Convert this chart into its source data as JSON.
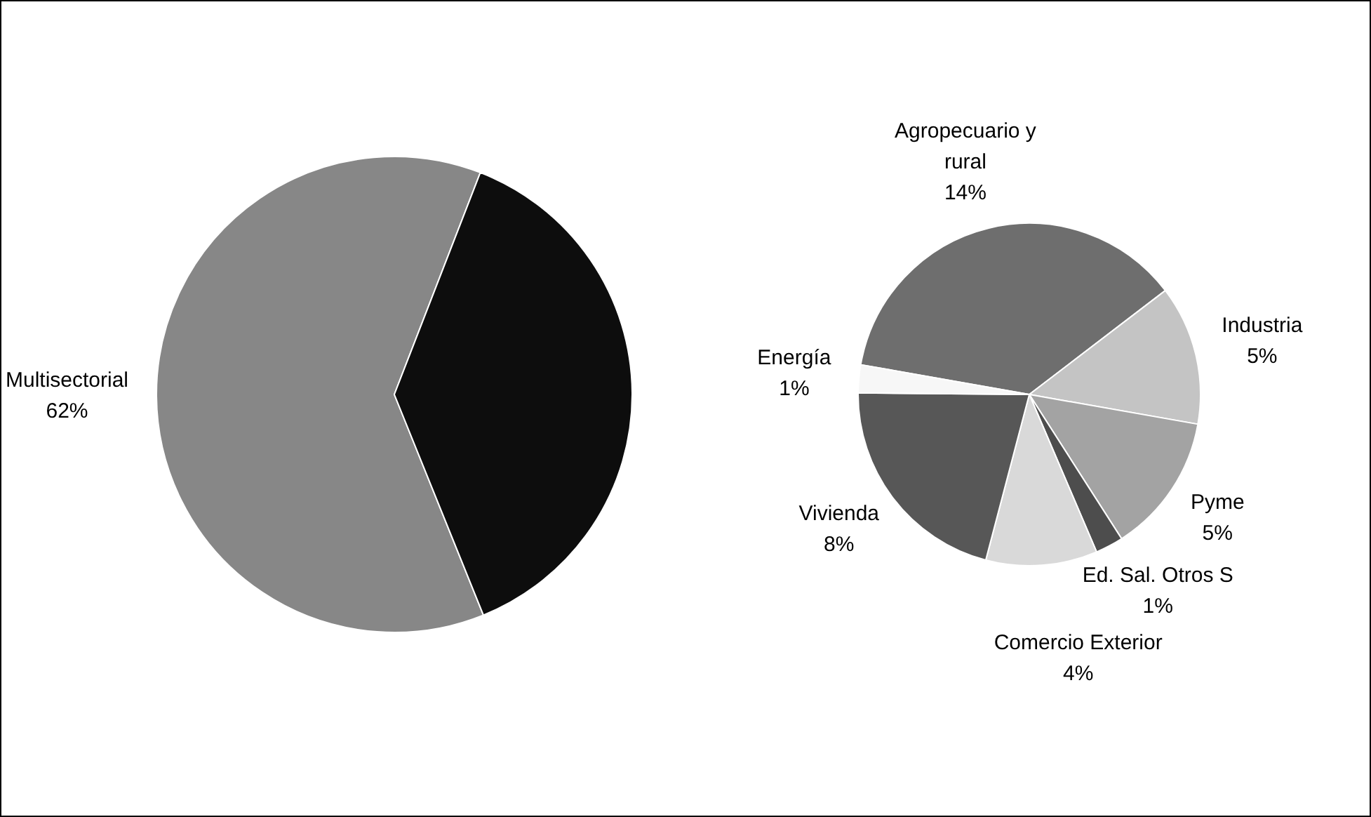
{
  "chart_data": [
    {
      "type": "pie",
      "categories": [
        "Multisectorial",
        null
      ],
      "values": [
        62,
        38
      ],
      "colors": [
        "#878787",
        "#0d0d0d"
      ],
      "value_labels": [
        "62%",
        null
      ]
    },
    {
      "type": "pie",
      "categories": [
        "Agropecuario y rural",
        "Industria",
        "Pyme",
        "Ed. Sal. Otros S",
        "Comercio Exterior",
        "Vivienda",
        "Energía"
      ],
      "values": [
        14,
        5,
        5,
        1,
        4,
        8,
        1
      ],
      "colors": [
        "#6e6e6e",
        "#c4c4c4",
        "#a3a3a3",
        "#4d4d4d",
        "#d9d9d9",
        "#575757",
        "#f7f7f7"
      ],
      "value_labels": [
        "14%",
        "5%",
        "5%",
        "1%",
        "4%",
        "8%",
        "1%"
      ]
    }
  ]
}
